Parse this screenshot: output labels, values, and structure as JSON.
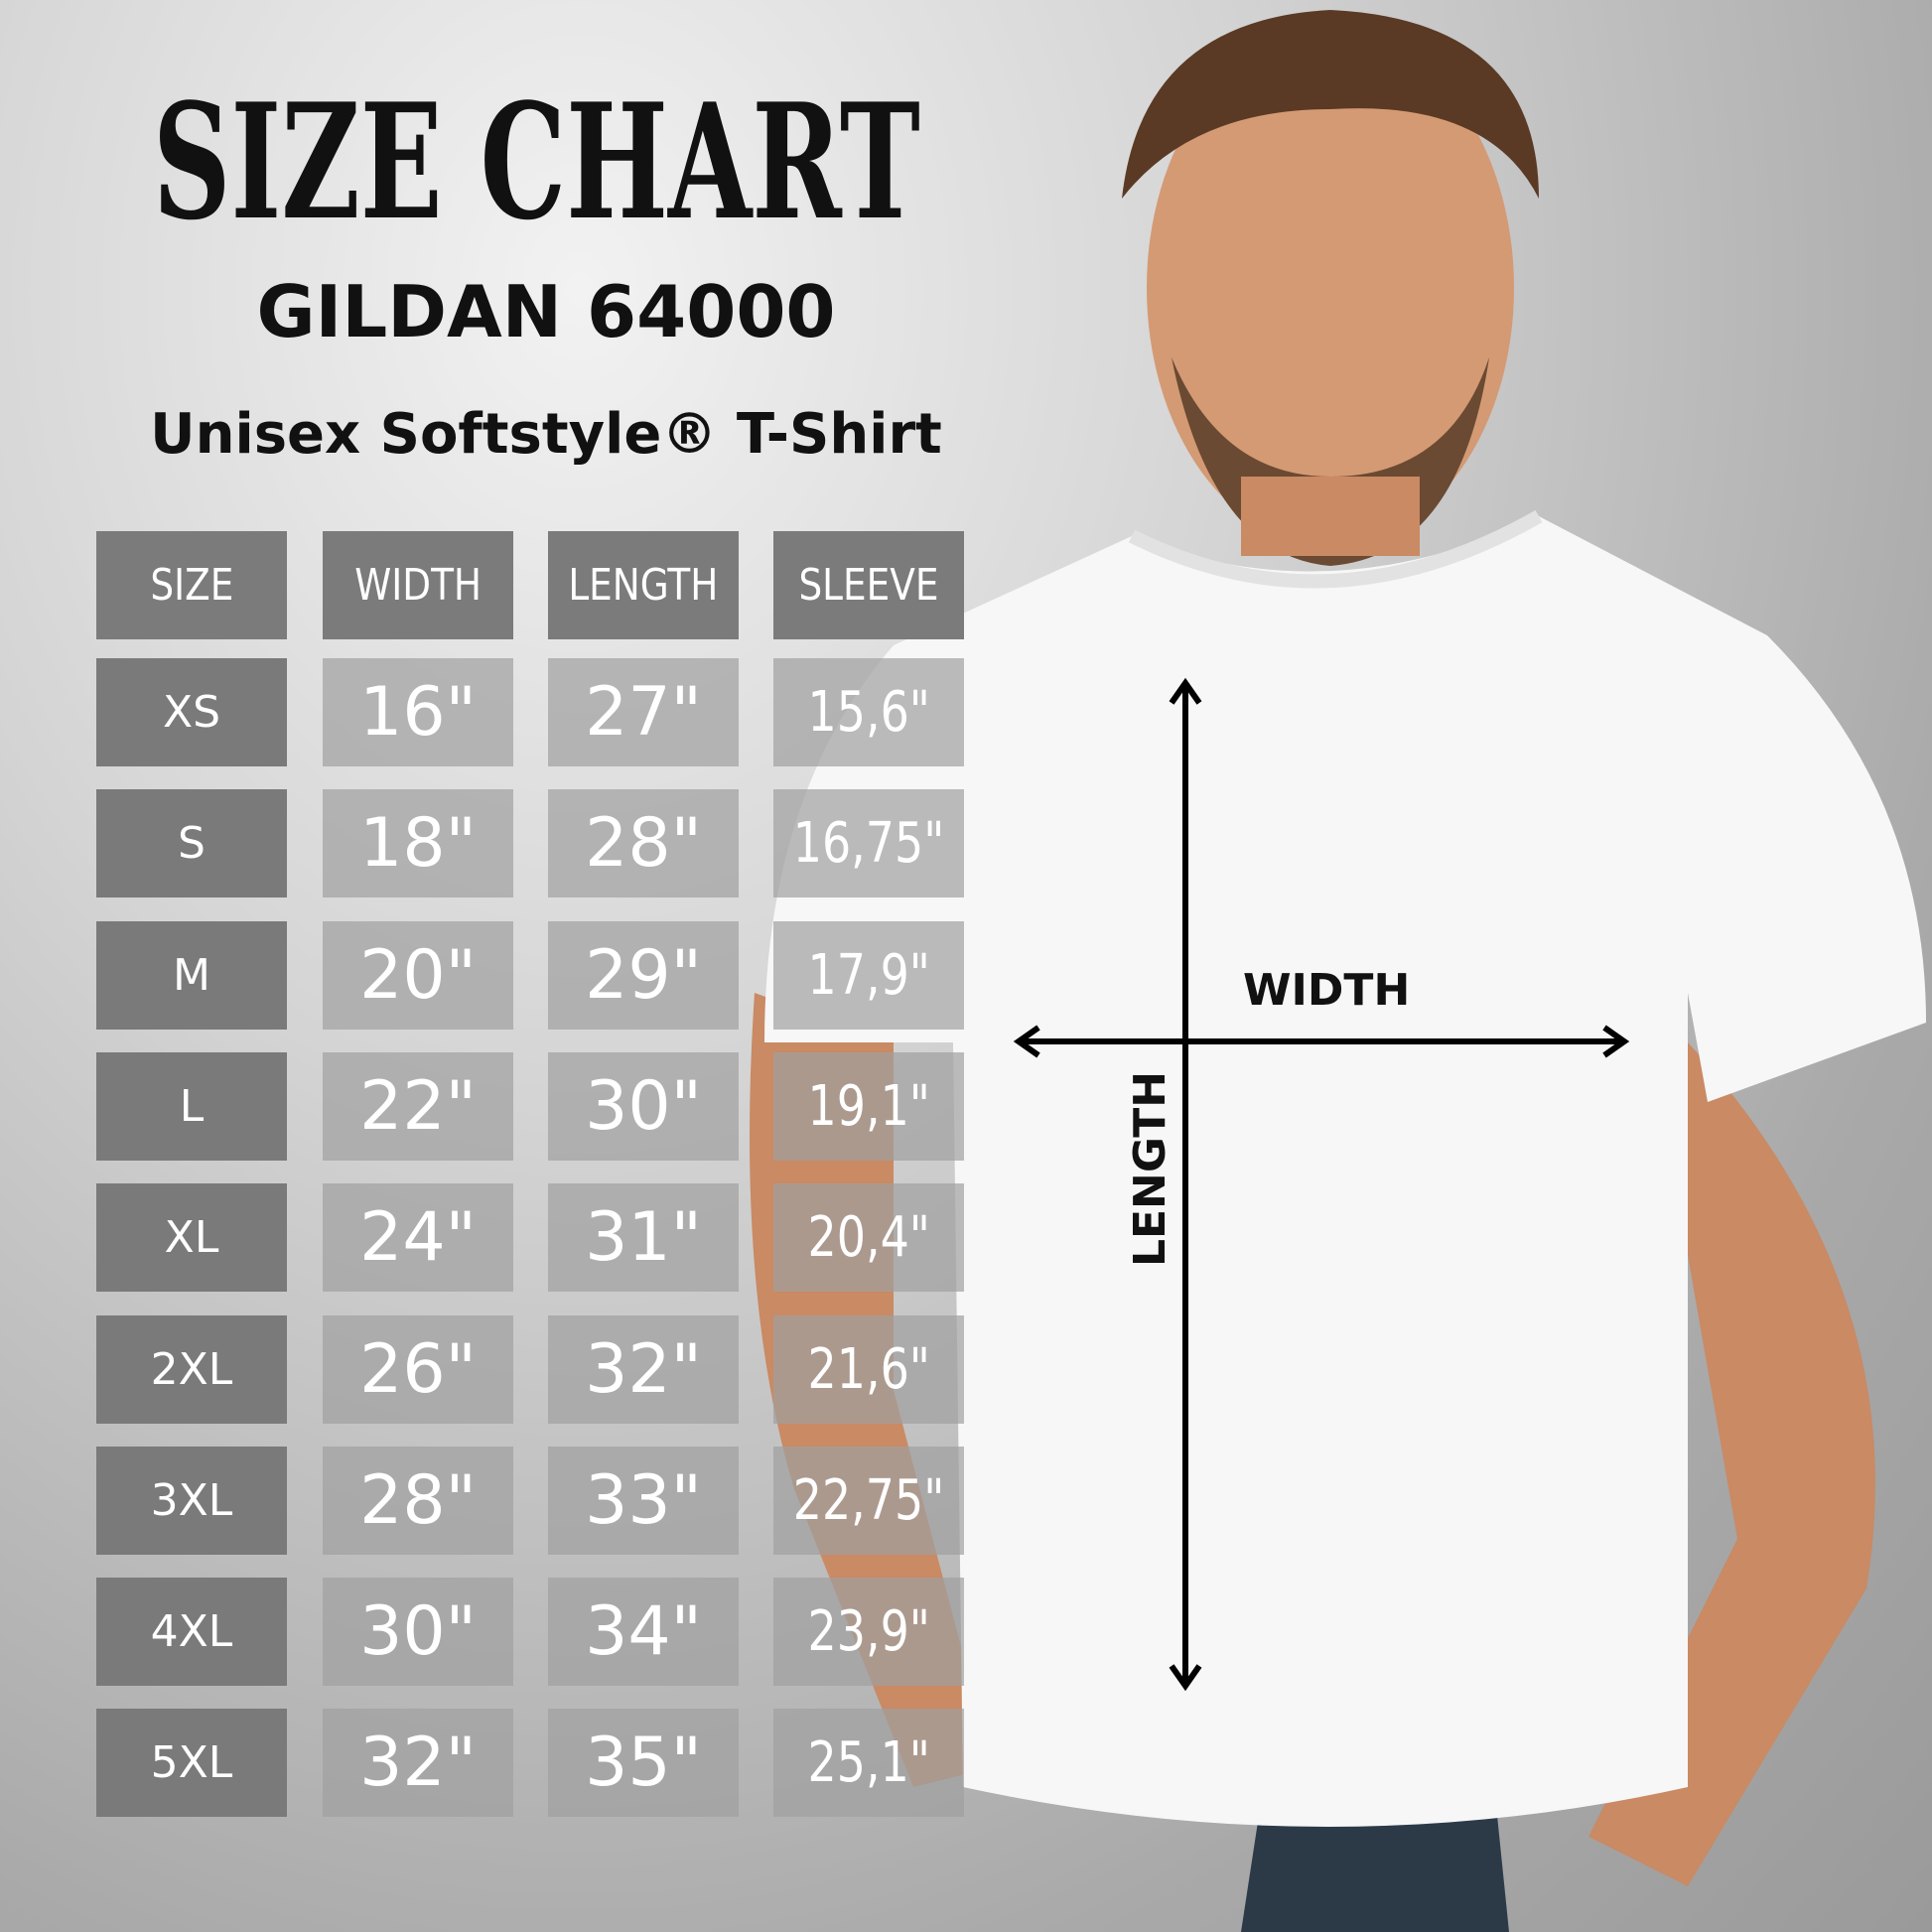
{
  "title": "Size Chart",
  "brand": "GILDAN 64000",
  "subtitle": "Unisex Softstyle® T-Shirt",
  "diagram": {
    "width_label": "WIDTH",
    "length_label": "LENGTH"
  },
  "chart_data": {
    "type": "table",
    "columns": [
      "SIZE",
      "WIDTH",
      "LENGTH",
      "SLEEVE"
    ],
    "rows": [
      [
        "XS",
        "16\"",
        "27\"",
        "15,6\""
      ],
      [
        "S",
        "18\"",
        "28\"",
        "16,75\""
      ],
      [
        "M",
        "20\"",
        "29\"",
        "17,9\""
      ],
      [
        "L",
        "22\"",
        "30\"",
        "19,1\""
      ],
      [
        "XL",
        "24\"",
        "31\"",
        "20,4\""
      ],
      [
        "2XL",
        "26\"",
        "32\"",
        "21,6\""
      ],
      [
        "3XL",
        "28\"",
        "33\"",
        "22,75\""
      ],
      [
        "4XL",
        "30\"",
        "34\"",
        "23,9\""
      ],
      [
        "5XL",
        "32\"",
        "35\"",
        "25,1\""
      ]
    ]
  },
  "colors": {
    "header": "#7b7b7b",
    "shirt": "#f7f7f7",
    "skin": "#c98a64"
  }
}
